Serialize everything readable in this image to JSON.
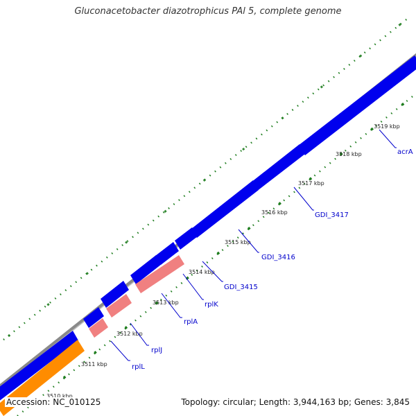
{
  "title": "Gluconacetobacter diazotrophicus PAl 5, complete genome",
  "footer": {
    "accession": "Accession: NC_010125",
    "summary": "Topology: circular; Length: 3,944,163 bp; Genes: 3,845"
  },
  "colors": {
    "backbone": "#8a8a8a",
    "forward_gene": "#0000ee",
    "reverse_gene": "#f08080",
    "rrna_gene": "#ff8c00",
    "tick": "#1e7d1e",
    "label": "#0000cc"
  },
  "ticks": [
    {
      "label": "3510 kbp"
    },
    {
      "label": "3511 kbp"
    },
    {
      "label": "3512 kbp"
    },
    {
      "label": "3513 kbp"
    },
    {
      "label": "3514 kbp"
    },
    {
      "label": "3515 kbp"
    },
    {
      "label": "3516 kbp"
    },
    {
      "label": "3517 kbp"
    },
    {
      "label": "3518 kbp"
    },
    {
      "label": "3519 kbp"
    }
  ],
  "gene_labels": [
    {
      "name": "rplL"
    },
    {
      "name": "rplJ"
    },
    {
      "name": "rplA"
    },
    {
      "name": "rplK"
    },
    {
      "name": "GDI_3415"
    },
    {
      "name": "GDI_3416"
    },
    {
      "name": "GDI_3417"
    },
    {
      "name": "acrA"
    }
  ]
}
